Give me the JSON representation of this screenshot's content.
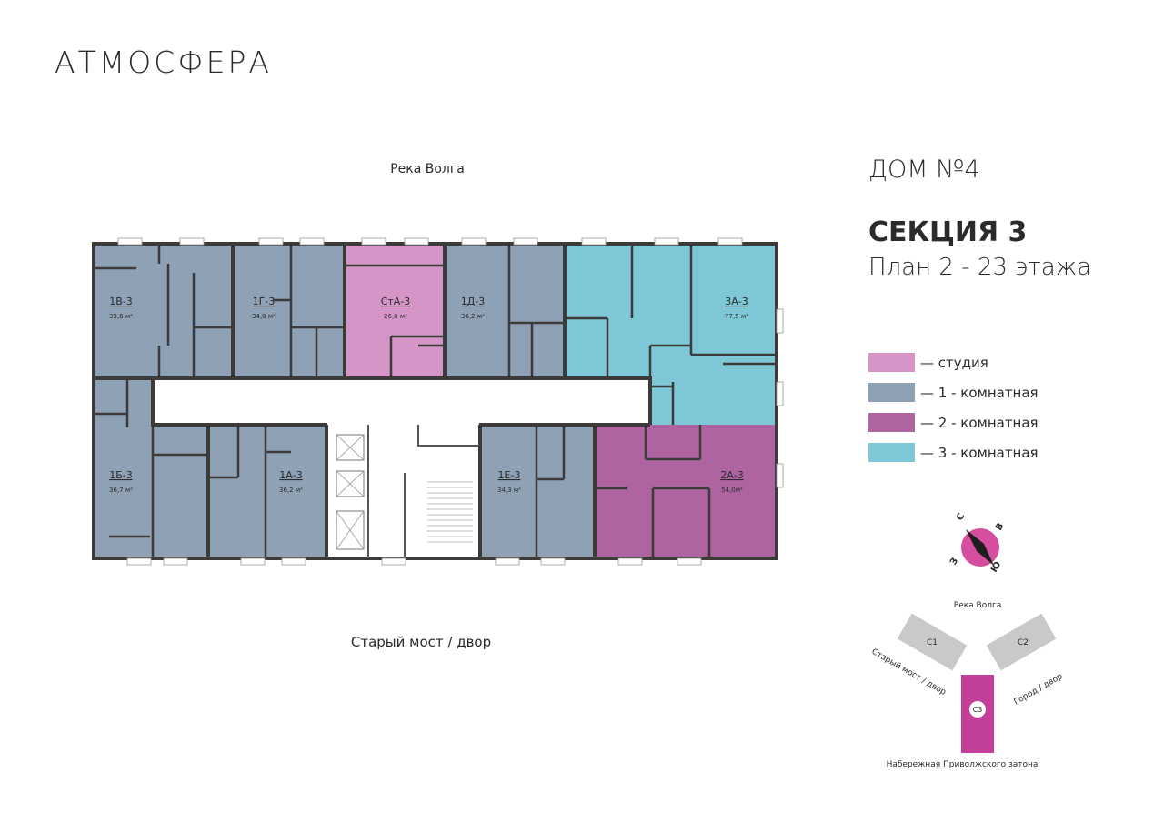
{
  "header": {
    "logo": "АТМОСФЕРА"
  },
  "plan": {
    "top_label": "Река Волга",
    "bottom_label": "Старый мост / двор",
    "apartments": [
      {
        "name": "1В-3",
        "area": "39,6 м²",
        "color": "#8fa1b5"
      },
      {
        "name": "1Г-3",
        "area": "34,0 м²",
        "color": "#8fa1b5"
      },
      {
        "name": "СтА-3",
        "area": "26,0 м²",
        "color": "#d596c7"
      },
      {
        "name": "1Д-3",
        "area": "36,2 м²",
        "color": "#8fa1b5"
      },
      {
        "name": "3А-3",
        "area": "77,5 м²",
        "color": "#7ec7d6"
      },
      {
        "name": "1Б-3",
        "area": "36,7 м²",
        "color": "#8fa1b5"
      },
      {
        "name": "1А-3",
        "area": "36,2 м²",
        "color": "#8fa1b5"
      },
      {
        "name": "1Е-3",
        "area": "34,3 м²",
        "color": "#8fa1b5"
      },
      {
        "name": "2А-3",
        "area": "54,0м²",
        "color": "#ad64a1"
      }
    ]
  },
  "info": {
    "house": "ДОМ №4",
    "section": "СЕКЦИЯ 3",
    "floors": "План 2 - 23 этажа"
  },
  "legend": [
    {
      "label": "— студия",
      "color": "#d596c7"
    },
    {
      "label": "— 1 - комнатная",
      "color": "#8fa1b5"
    },
    {
      "label": "— 2 - комнатная",
      "color": "#ad64a1"
    },
    {
      "label": "— 3 - комнатная",
      "color": "#7ec7d6"
    }
  ],
  "compass": {
    "north": "С",
    "east": "В",
    "west": "З",
    "south": "Ю"
  },
  "site": {
    "top_label": "Река Волга",
    "c1": "С1",
    "c2": "С2",
    "c3": "С3",
    "left_label": "Старый мост / двор",
    "right_label": "Город / двор",
    "bottom_label": "Набережная Приволжского затона"
  }
}
